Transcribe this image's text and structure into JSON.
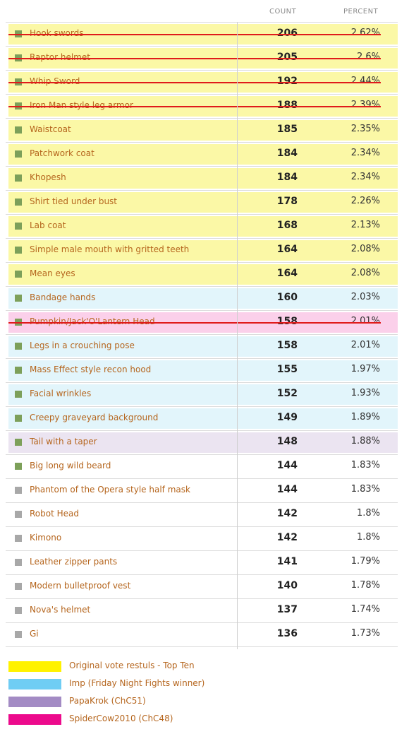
{
  "columns": {
    "count": "COUNT",
    "percent": "PERCENT"
  },
  "colors": {
    "yellow_bg": "#fbf8a6",
    "cyan_bg": "#e2f5fb",
    "pink_bg": "#fbd0ea",
    "purple_bg": "#ebe4f1",
    "green_marker": "#7da05a",
    "gray_marker": "#a8a8a8",
    "strike": "#e01b1b"
  },
  "chart_data": {
    "type": "table",
    "rows": [
      {
        "label": "Hook swords",
        "count": "206",
        "percent": "2.62%",
        "group": "top-ten",
        "marker": "green",
        "struck": true
      },
      {
        "label": "Raptor helmet",
        "count": "205",
        "percent": "2.6%",
        "group": "top-ten",
        "marker": "green",
        "struck": true
      },
      {
        "label": "Whip Sword",
        "count": "192",
        "percent": "2.44%",
        "group": "top-ten",
        "marker": "green",
        "struck": true
      },
      {
        "label": "Iron Man style leg armor",
        "count": "188",
        "percent": "2.39%",
        "group": "top-ten",
        "marker": "green",
        "struck": true
      },
      {
        "label": "Waistcoat",
        "count": "185",
        "percent": "2.35%",
        "group": "top-ten",
        "marker": "green",
        "struck": false
      },
      {
        "label": "Patchwork coat",
        "count": "184",
        "percent": "2.34%",
        "group": "top-ten",
        "marker": "green",
        "struck": false
      },
      {
        "label": "Khopesh",
        "count": "184",
        "percent": "2.34%",
        "group": "top-ten",
        "marker": "green",
        "struck": false
      },
      {
        "label": "Shirt tied under bust",
        "count": "178",
        "percent": "2.26%",
        "group": "top-ten",
        "marker": "green",
        "struck": false
      },
      {
        "label": "Lab coat",
        "count": "168",
        "percent": "2.13%",
        "group": "top-ten",
        "marker": "green",
        "struck": false
      },
      {
        "label": "Simple male mouth with gritted teeth",
        "count": "164",
        "percent": "2.08%",
        "group": "top-ten",
        "marker": "green",
        "struck": false
      },
      {
        "label": "Mean eyes",
        "count": "164",
        "percent": "2.08%",
        "group": "top-ten",
        "marker": "green",
        "struck": false
      },
      {
        "label": "Bandage hands",
        "count": "160",
        "percent": "2.03%",
        "group": "imp",
        "marker": "green",
        "struck": false
      },
      {
        "label": "Pumpkin/Jack'O'Lantern Head",
        "count": "158",
        "percent": "2.01%",
        "group": "spidercow",
        "marker": "green",
        "struck": true
      },
      {
        "label": "Legs in a crouching pose",
        "count": "158",
        "percent": "2.01%",
        "group": "imp",
        "marker": "green",
        "struck": false
      },
      {
        "label": "Mass Effect style recon hood",
        "count": "155",
        "percent": "1.97%",
        "group": "imp",
        "marker": "green",
        "struck": false
      },
      {
        "label": "Facial wrinkles",
        "count": "152",
        "percent": "1.93%",
        "group": "imp",
        "marker": "green",
        "struck": false
      },
      {
        "label": "Creepy graveyard background",
        "count": "149",
        "percent": "1.89%",
        "group": "imp",
        "marker": "green",
        "struck": false
      },
      {
        "label": "Tail with a taper",
        "count": "148",
        "percent": "1.88%",
        "group": "papakrok",
        "marker": "green",
        "struck": false
      },
      {
        "label": "Big long wild beard",
        "count": "144",
        "percent": "1.83%",
        "group": "none",
        "marker": "green",
        "struck": false
      },
      {
        "label": "Phantom of the Opera style half mask",
        "count": "144",
        "percent": "1.83%",
        "group": "none",
        "marker": "gray",
        "struck": false
      },
      {
        "label": "Robot Head",
        "count": "142",
        "percent": "1.8%",
        "group": "none",
        "marker": "gray",
        "struck": false
      },
      {
        "label": "Kimono",
        "count": "142",
        "percent": "1.8%",
        "group": "none",
        "marker": "gray",
        "struck": false
      },
      {
        "label": "Leather zipper pants",
        "count": "141",
        "percent": "1.79%",
        "group": "none",
        "marker": "gray",
        "struck": false
      },
      {
        "label": "Modern bulletproof vest",
        "count": "140",
        "percent": "1.78%",
        "group": "none",
        "marker": "gray",
        "struck": false
      },
      {
        "label": "Nova's helmet",
        "count": "137",
        "percent": "1.74%",
        "group": "none",
        "marker": "gray",
        "struck": false
      },
      {
        "label": "Gi",
        "count": "136",
        "percent": "1.73%",
        "group": "none",
        "marker": "gray",
        "struck": false
      }
    ]
  },
  "legend": [
    {
      "label": "Original vote restuls - Top Ten",
      "color": "#fff200"
    },
    {
      "label": "Imp (Friday Night Fights winner)",
      "color": "#6fcdf4"
    },
    {
      "label": "PapaKrok (ChC51)",
      "color": "#a38bc4"
    },
    {
      "label": "SpiderCow2010 (ChC48)",
      "color": "#ec0a8c"
    }
  ]
}
